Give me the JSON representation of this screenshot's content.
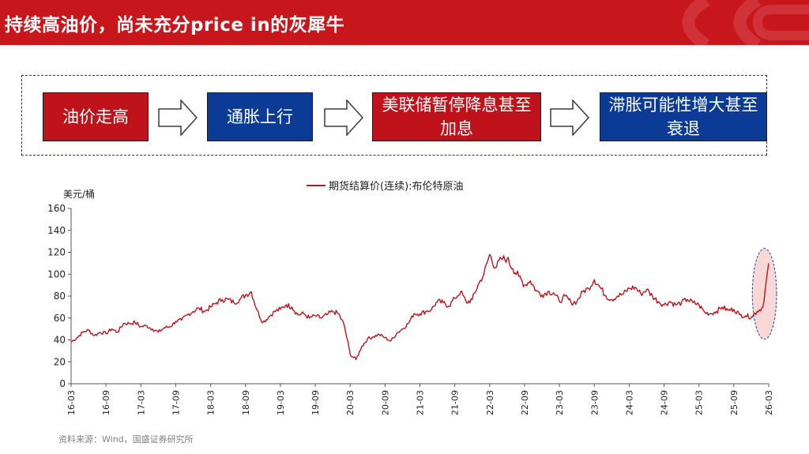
{
  "header": {
    "title": "持续高油价，尚未充分price in的灰犀牛",
    "accent": "#c8161d"
  },
  "flow": {
    "steps": [
      {
        "label": "油价走高",
        "color": "#c0121b"
      },
      {
        "label": "通胀上行",
        "color": "#0b3b97"
      },
      {
        "label": "美联储暂停降息甚至加息",
        "color": "#c0121b"
      },
      {
        "label": "滞胀可能性增大甚至衰退",
        "color": "#0b3b97"
      }
    ],
    "arrow_icon": "outline-right-arrow-icon"
  },
  "chart_data": {
    "type": "line",
    "legend": "期货结算价(连续):布伦特原油",
    "legend_position": "top-center",
    "ylabel": "美元/桶",
    "ylim": [
      0,
      160
    ],
    "yticks": [
      "0",
      "20",
      "40",
      "60",
      "80",
      "100",
      "120",
      "140",
      "160"
    ],
    "xticks": [
      "16-03",
      "16-09",
      "17-03",
      "17-09",
      "18-03",
      "18-09",
      "19-03",
      "19-09",
      "20-03",
      "20-09",
      "21-03",
      "21-09",
      "22-03",
      "22-09",
      "23-03",
      "23-09",
      "24-03",
      "24-09",
      "25-03",
      "25-09",
      "26-03"
    ],
    "grid": false,
    "line_color": "#c0121b",
    "series": [
      {
        "name": "期货结算价(连续):布伦特原油",
        "x": [
          "2016-03",
          "2016-04",
          "2016-05",
          "2016-06",
          "2016-07",
          "2016-08",
          "2016-09",
          "2016-10",
          "2016-11",
          "2016-12",
          "2017-01",
          "2017-02",
          "2017-03",
          "2017-04",
          "2017-05",
          "2017-06",
          "2017-07",
          "2017-08",
          "2017-09",
          "2017-10",
          "2017-11",
          "2017-12",
          "2018-01",
          "2018-02",
          "2018-03",
          "2018-04",
          "2018-05",
          "2018-06",
          "2018-07",
          "2018-08",
          "2018-09",
          "2018-10",
          "2018-11",
          "2018-12",
          "2019-01",
          "2019-02",
          "2019-03",
          "2019-04",
          "2019-05",
          "2019-06",
          "2019-07",
          "2019-08",
          "2019-09",
          "2019-10",
          "2019-11",
          "2019-12",
          "2020-01",
          "2020-02",
          "2020-03",
          "2020-04",
          "2020-05",
          "2020-06",
          "2020-07",
          "2020-08",
          "2020-09",
          "2020-10",
          "2020-11",
          "2020-12",
          "2021-01",
          "2021-02",
          "2021-03",
          "2021-04",
          "2021-05",
          "2021-06",
          "2021-07",
          "2021-08",
          "2021-09",
          "2021-10",
          "2021-11",
          "2021-12",
          "2022-01",
          "2022-02",
          "2022-03",
          "2022-04",
          "2022-05",
          "2022-06",
          "2022-07",
          "2022-08",
          "2022-09",
          "2022-10",
          "2022-11",
          "2022-12",
          "2023-01",
          "2023-02",
          "2023-03",
          "2023-04",
          "2023-05",
          "2023-06",
          "2023-07",
          "2023-08",
          "2023-09",
          "2023-10",
          "2023-11",
          "2023-12",
          "2024-01",
          "2024-02",
          "2024-03",
          "2024-04",
          "2024-05",
          "2024-06",
          "2024-07",
          "2024-08",
          "2024-09",
          "2024-10",
          "2024-11",
          "2024-12",
          "2025-01",
          "2025-02",
          "2025-03",
          "2025-04",
          "2025-05",
          "2025-06",
          "2025-07",
          "2025-08",
          "2025-09",
          "2025-10",
          "2025-11",
          "2025-12",
          "2026-01",
          "2026-02",
          "2026-03"
        ],
        "values": [
          38,
          42,
          47,
          49,
          44,
          47,
          46,
          50,
          47,
          55,
          55,
          56,
          52,
          53,
          50,
          47,
          51,
          52,
          57,
          58,
          63,
          66,
          69,
          66,
          70,
          74,
          77,
          77,
          74,
          77,
          81,
          84,
          67,
          56,
          61,
          66,
          68,
          72,
          70,
          63,
          64,
          60,
          62,
          60,
          63,
          66,
          64,
          53,
          27,
          22,
          34,
          41,
          43,
          45,
          42,
          39,
          46,
          50,
          55,
          64,
          64,
          66,
          68,
          75,
          74,
          71,
          78,
          84,
          74,
          77,
          90,
          100,
          118,
          106,
          114,
          114,
          105,
          98,
          90,
          94,
          85,
          81,
          84,
          83,
          75,
          80,
          74,
          75,
          84,
          87,
          95,
          88,
          80,
          77,
          80,
          82,
          87,
          88,
          82,
          86,
          80,
          75,
          72,
          75,
          72,
          74,
          77,
          74,
          72,
          65,
          64,
          66,
          70,
          67,
          68,
          63,
          62,
          61,
          66,
          70,
          110
        ]
      }
    ],
    "highlight": {
      "label": "ellipse",
      "range": [
        "2026-01",
        "2026-03"
      ],
      "fill": "#f8d7d7",
      "stroke": "#2f3f7f"
    }
  },
  "source": "资料来源：Wind，国盛证券研究所"
}
